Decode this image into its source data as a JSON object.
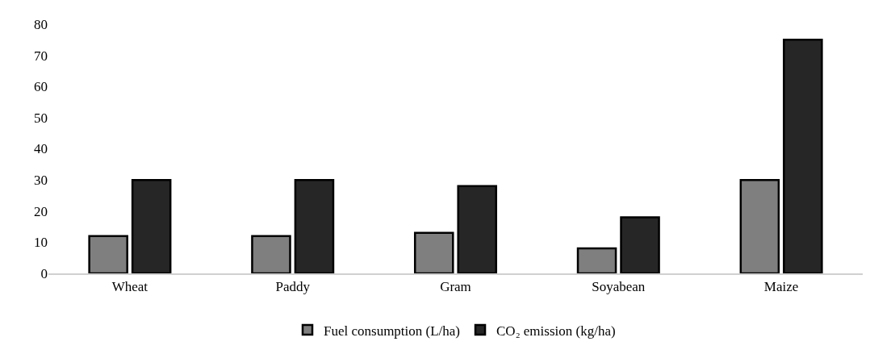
{
  "chart_data": {
    "type": "bar",
    "categories": [
      "Wheat",
      "Paddy",
      "Gram",
      "Soyabean",
      "Maize"
    ],
    "series": [
      {
        "name": "Fuel consumption (L/ha)",
        "color": "#7f7f7f",
        "values": [
          12,
          12,
          13,
          8,
          30
        ]
      },
      {
        "name": "CO₂ emission (kg/ha)",
        "color": "#262626",
        "values": [
          30,
          30,
          28,
          18,
          75
        ]
      }
    ],
    "ylim": [
      0,
      80
    ],
    "yticks": [
      0,
      10,
      20,
      30,
      40,
      50,
      60,
      70,
      80
    ],
    "legend": "bottom"
  }
}
